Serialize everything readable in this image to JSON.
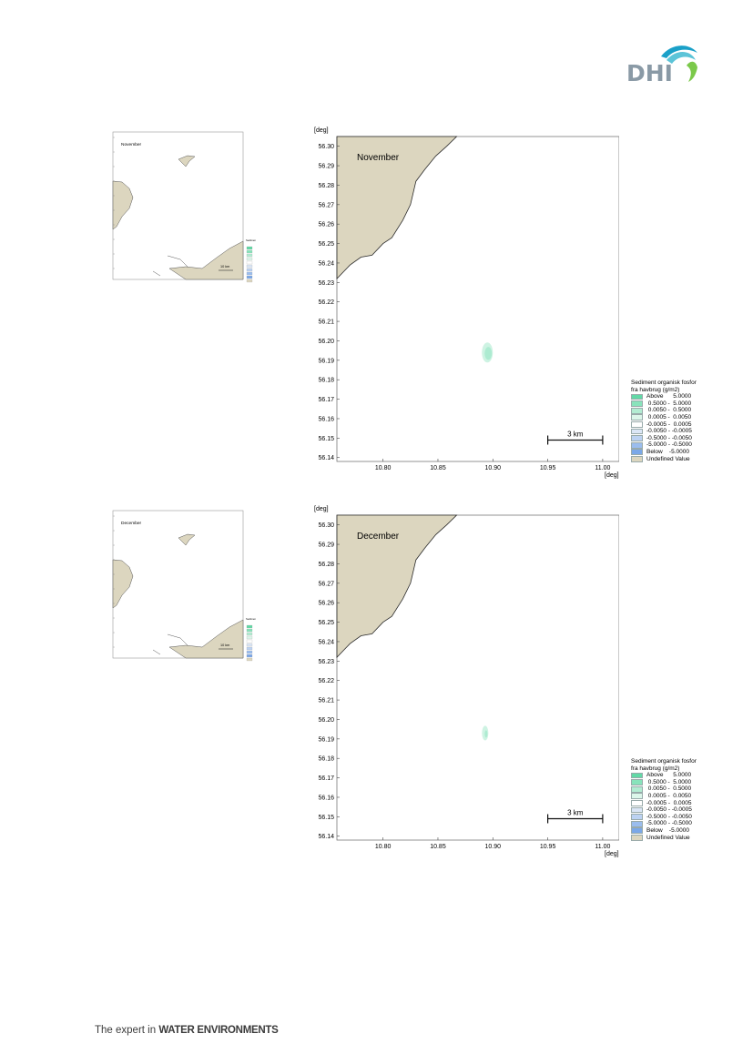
{
  "brand": {
    "logo_text": "DHI",
    "tagline_prefix": "The expert in ",
    "tagline_bold": "WATER ENVIRONMENTS"
  },
  "colors": {
    "land": "#dcd6bf",
    "coast": "#2a2a2a",
    "plume": "#a5e8cc",
    "plume_light": "#c9f2e0"
  },
  "units": {
    "deg": "[deg]"
  },
  "y_ticks": [
    "56.30",
    "56.29",
    "56.28",
    "56.27",
    "56.26",
    "56.25",
    "56.24",
    "56.23",
    "56.22",
    "56.21",
    "56.20",
    "56.19",
    "56.18",
    "56.17",
    "56.16",
    "56.15",
    "56.14"
  ],
  "x_ticks": [
    "10.80",
    "10.85",
    "10.90",
    "10.95",
    "11.00"
  ],
  "scale_bar": "3 km",
  "overview_scale_bar": "10 km",
  "legend": {
    "title_line1": "Sediment organisk fosfor",
    "title_line2": "fra havbrug (g/m2)",
    "items": [
      {
        "label": "Above      5.0000",
        "color": "#62d9a6"
      },
      {
        "label": " 0.5000 -  5.0000",
        "color": "#88e3bb"
      },
      {
        "label": " 0.0050 -  0.5000",
        "color": "#b2ecd2"
      },
      {
        "label": " 0.0005 -  0.0050",
        "color": "#dcf6ea"
      },
      {
        "label": "-0.0005 -  0.0005",
        "color": "#ffffff"
      },
      {
        "label": "-0.0050 - -0.0005",
        "color": "#dbe6f6"
      },
      {
        "label": "-0.5000 - -0.0050",
        "color": "#bcd2f2"
      },
      {
        "label": "-5.0000 - -0.5000",
        "color": "#9bbdee"
      },
      {
        "label": "Below    -5.0000",
        "color": "#7ba8e8"
      },
      {
        "label": "Undefined Value",
        "color": "#dcd6bf"
      }
    ]
  },
  "panels": [
    {
      "month": "November"
    },
    {
      "month": "December"
    }
  ]
}
